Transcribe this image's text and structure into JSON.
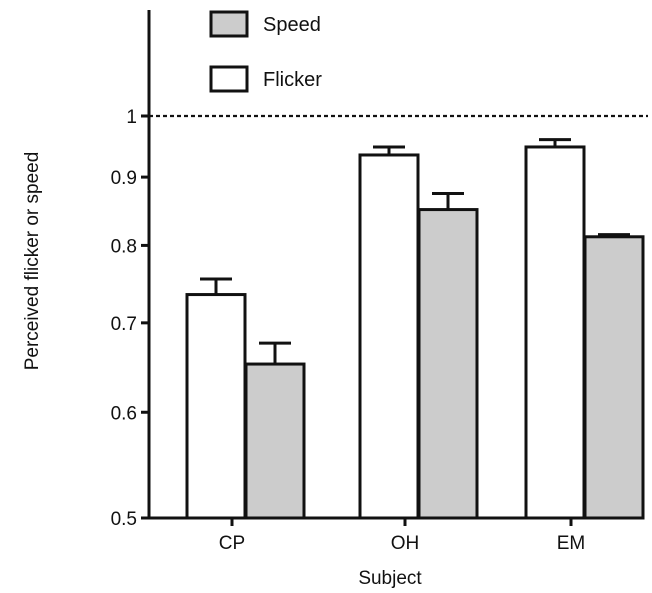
{
  "chart_data": {
    "type": "bar",
    "categories": [
      "CP",
      "OH",
      "EM"
    ],
    "xlabel": "Subject",
    "ylabel": "Perceived flicker or speed",
    "yscale": "log",
    "ylim": [
      0.5,
      1.15
    ],
    "yticks": [
      0.5,
      0.6,
      0.7,
      0.8,
      0.9,
      1
    ],
    "ytick_labels": [
      "0.5",
      "0.6",
      "0.7",
      "0.8",
      "0.9",
      "1"
    ],
    "reference_line": {
      "y": 1,
      "style": "dashed"
    },
    "legend": {
      "position": "top-left",
      "order": [
        "Speed",
        "Flicker"
      ]
    },
    "series": [
      {
        "name": "Flicker",
        "color": "#ffffff",
        "values": [
          0.735,
          0.935,
          0.948
        ],
        "errors": [
          0.02,
          0.013,
          0.012
        ]
      },
      {
        "name": "Speed",
        "color": "#cccccc",
        "values": [
          0.652,
          0.851,
          0.812
        ],
        "errors": [
          0.024,
          0.024,
          0.003
        ]
      }
    ]
  }
}
